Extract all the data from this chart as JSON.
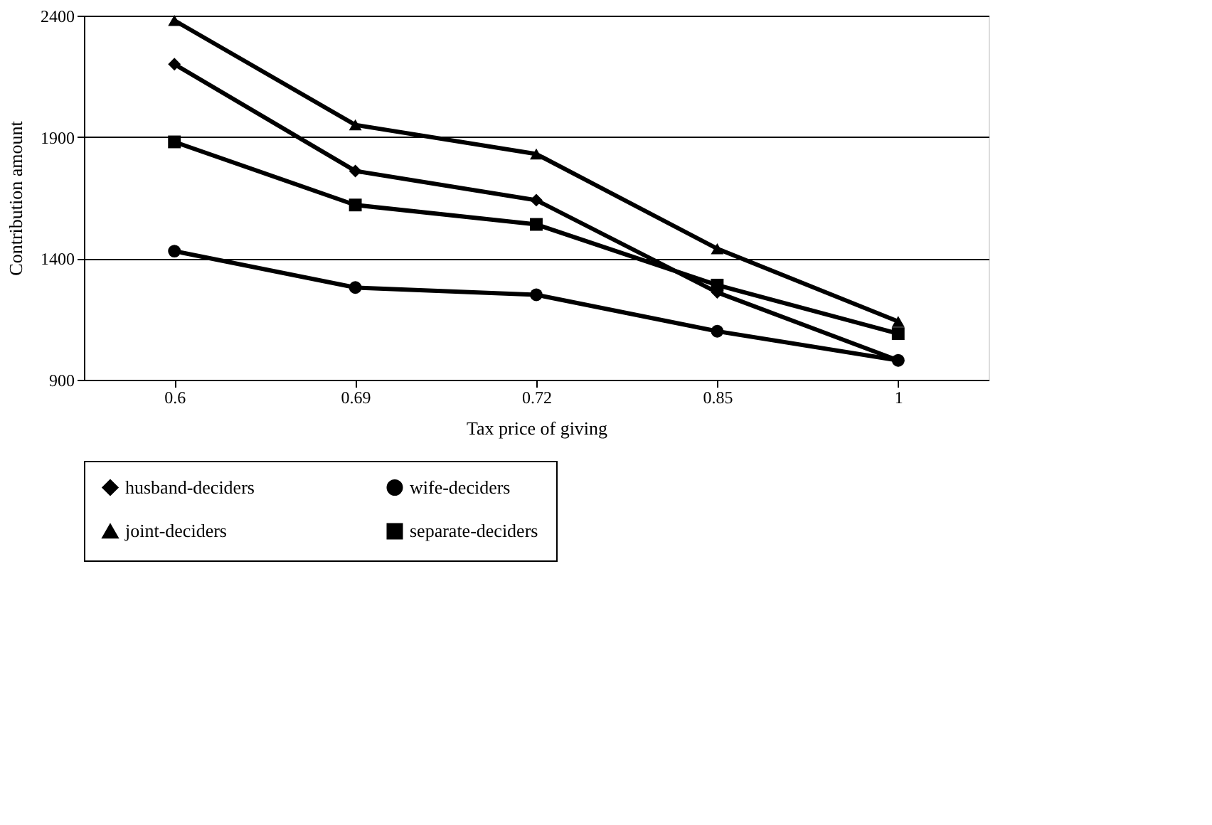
{
  "chart_data": {
    "type": "line",
    "xlabel": "Tax price of giving",
    "ylabel": "Contribution amount",
    "categories": [
      "0.6",
      "0.69",
      "0.72",
      "0.85",
      "1"
    ],
    "series": [
      {
        "name": "husband-deciders",
        "color": "#000000",
        "marker": "diamond",
        "values": [
          2200,
          1760,
          1640,
          1260,
          980
        ]
      },
      {
        "name": "wife-deciders",
        "color": "#000000",
        "marker": "circle",
        "values": [
          1430,
          1280,
          1250,
          1100,
          980
        ]
      },
      {
        "name": "joint-deciders",
        "color": "#000000",
        "marker": "triangle",
        "values": [
          2380,
          1950,
          1830,
          1440,
          1140
        ]
      },
      {
        "name": "separate-deciders",
        "color": "#000000",
        "marker": "square",
        "values": [
          1880,
          1620,
          1540,
          1290,
          1090
        ]
      }
    ],
    "ylim": [
      900,
      2400
    ],
    "yticks": [
      900,
      1400,
      1900,
      2400
    ],
    "grid": "y",
    "legend": "bottom",
    "line_style": "solid"
  }
}
